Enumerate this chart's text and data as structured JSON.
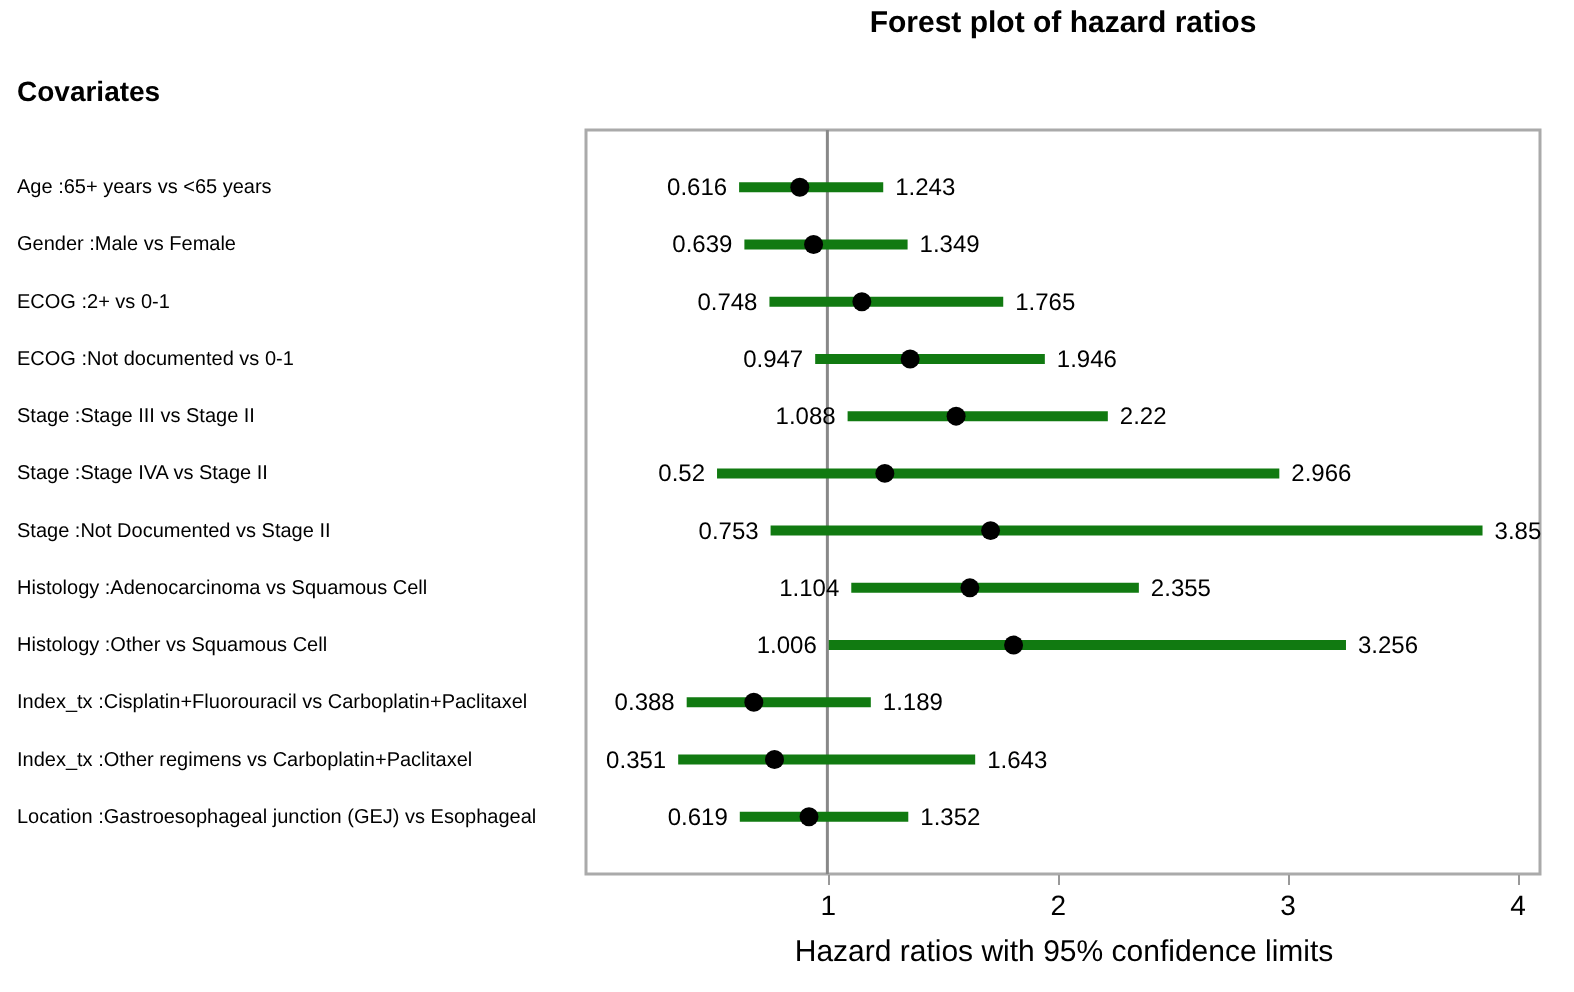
{
  "chart_data": {
    "type": "scatter",
    "orientation": "horizontal",
    "title": "Forest plot of hazard ratios",
    "ylabel": "Covariates",
    "xlabel": "Hazard ratios with 95% confidence limits",
    "categories": [
      "Age :65+ years vs <65 years",
      "Gender :Male vs Female",
      "ECOG :2+ vs 0-1",
      "ECOG :Not documented vs 0-1",
      "Stage :Stage III vs Stage II",
      "Stage :Stage IVA vs Stage II",
      "Stage :Not Documented vs Stage II",
      "Histology :Adenocarcinoma vs Squamous Cell",
      "Histology :Other vs Squamous Cell",
      "Index_tx :Cisplatin+Fluorouracil vs Carboplatin+Paclitaxel",
      "Index_tx :Other regimens vs Carboplatin+Paclitaxel",
      "Location :Gastroesophageal junction (GEJ) vs Esophageal"
    ],
    "series": [
      {
        "color": "#000000",
        "values": [
          0.88,
          0.94,
          1.15,
          1.36,
          1.56,
          1.25,
          1.71,
          1.62,
          1.81,
          0.68,
          0.77,
          0.92
        ],
        "errors": [
          [
            0.616,
            1.243
          ],
          [
            0.639,
            1.349
          ],
          [
            0.748,
            1.765
          ],
          [
            0.947,
            1.946
          ],
          [
            1.088,
            2.22
          ],
          [
            0.52,
            2.966
          ],
          [
            0.753,
            3.85
          ],
          [
            1.104,
            2.355
          ],
          [
            1.006,
            3.256
          ],
          [
            0.388,
            1.189
          ],
          [
            0.351,
            1.643
          ],
          [
            0.619,
            1.352
          ]
        ]
      }
    ],
    "marker": "circle",
    "xlim": [
      -0.05,
      4.1
    ],
    "xticks": [
      1,
      2,
      3,
      4
    ],
    "grid": false,
    "ref_lines": [
      {
        "axis": "x",
        "value": 1,
        "color": "#888888"
      }
    ],
    "annotations": [
      "0.616",
      "1.243",
      "0.639",
      "1.349",
      "0.748",
      "1.765",
      "0.947",
      "1.946",
      "1.088",
      "2.22",
      "0.52",
      "2.966",
      "0.753",
      "3.85",
      "1.104",
      "2.355",
      "1.006",
      "3.256",
      "0.388",
      "1.189",
      "0.351",
      "1.643",
      "0.619",
      "1.352"
    ]
  }
}
